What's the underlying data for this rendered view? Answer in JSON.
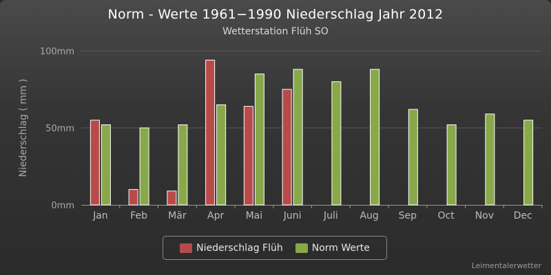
{
  "chart_data": {
    "type": "bar",
    "title": "Norm - Werte 1961−1990 Niederschlag Jahr 2012",
    "subtitle": "Wetterstation Flüh SO",
    "ylabel": "Niederschlag ( mm )",
    "xlabel": "",
    "ylim": [
      0,
      100
    ],
    "yticks": [
      {
        "value": 0,
        "label": "0mm"
      },
      {
        "value": 50,
        "label": "50mm"
      },
      {
        "value": 100,
        "label": "100mm"
      }
    ],
    "grid": true,
    "categories": [
      "Jan",
      "Feb",
      "Mär",
      "Apr",
      "Mai",
      "Juni",
      "Juli",
      "Aug",
      "Sep",
      "Oct",
      "Nov",
      "Dec"
    ],
    "series": [
      {
        "name": "Niederschlag Flüh",
        "color": "#b84a4a",
        "values": [
          55,
          10,
          9,
          94,
          64,
          75,
          null,
          null,
          null,
          null,
          null,
          null
        ]
      },
      {
        "name": "Norm Werte",
        "color": "#88a84a",
        "values": [
          52,
          50,
          52,
          65,
          85,
          88,
          80,
          88,
          62,
          52,
          59,
          55
        ]
      }
    ],
    "legend_position": "bottom-center"
  },
  "credit": "Leimentalerwetter"
}
